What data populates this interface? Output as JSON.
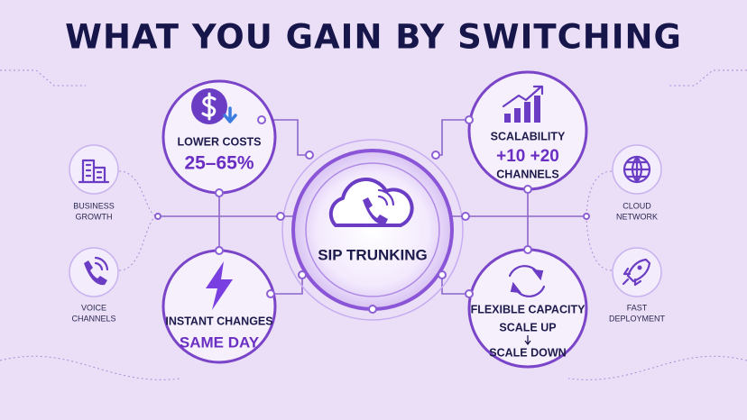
{
  "header": {
    "title": "WHAT YOU GAIN BY SWITCHING"
  },
  "center": {
    "label": "SIP TRUNKING"
  },
  "benefits": [
    {
      "title": "LOWER COSTS",
      "detail": "25–65%"
    },
    {
      "title": "SCALABILITY",
      "detail": "+10 +20",
      "note": "CHANNELS"
    },
    {
      "title": "INSTANT CHANGES",
      "detail": "SAME DAY"
    },
    {
      "title": "FLEXIBLE CAPACITY",
      "detail": "SCALE UP",
      "note": "SCALE DOWN"
    }
  ],
  "side_items": [
    {
      "lines": [
        "BUSINESS",
        "GROWTH"
      ]
    },
    {
      "lines": [
        "VOICE",
        "CHANNELS"
      ]
    },
    {
      "lines": [
        "CLOUD",
        "NETWORK"
      ]
    },
    {
      "lines": [
        "FAST",
        "DEPLOYMENT"
      ]
    }
  ]
}
